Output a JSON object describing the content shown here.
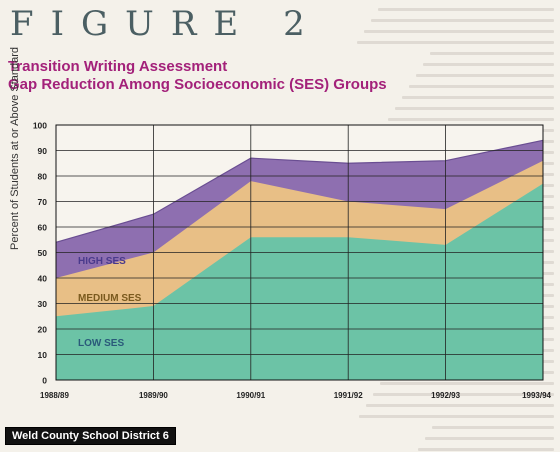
{
  "figure_label": "FIGURE 2",
  "title_line1": "Transition Writing Assessment",
  "title_line2": "Gap Reduction Among Socioeconomic (SES) Groups",
  "footer": "Weld County School District 6",
  "colors": {
    "high": "#8e6fb0",
    "medium": "#e8bf86",
    "low": "#6cc3a6",
    "grid": "#222222",
    "title": "#a3217a",
    "label": "#4a3a8c"
  },
  "chart_data": {
    "type": "area",
    "title": "Transition Writing Assessment Gap Reduction Among Socioeconomic (SES) Groups",
    "xlabel": "",
    "ylabel": "Percent of Students at or Above Standard",
    "categories": [
      "1988/89",
      "1989/90",
      "1990/91",
      "1991/92",
      "1992/93",
      "1993/94"
    ],
    "ylim": [
      0,
      100
    ],
    "yticks": [
      0,
      10,
      20,
      30,
      40,
      50,
      60,
      70,
      80,
      90,
      100
    ],
    "grid": true,
    "series": [
      {
        "name": "HIGH SES",
        "values": [
          54,
          65,
          87,
          85,
          86,
          94
        ]
      },
      {
        "name": "MEDIUM SES",
        "values": [
          40,
          50,
          78,
          70,
          67,
          86
        ]
      },
      {
        "name": "LOW SES",
        "values": [
          25,
          29,
          56,
          56,
          53,
          77
        ]
      }
    ]
  }
}
